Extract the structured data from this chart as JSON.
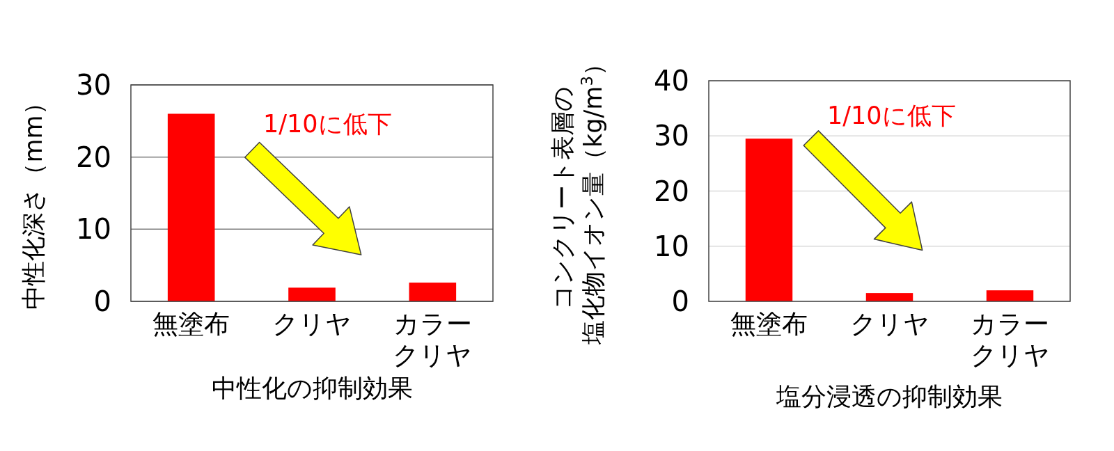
{
  "chart_data": [
    {
      "type": "bar",
      "xlabel": "中性化の抑制効果",
      "ylabel": "中性化深さ（mm）",
      "categories": [
        "無塗布",
        "クリヤ",
        "カラークリヤ"
      ],
      "values": [
        26,
        1.9,
        2.6
      ],
      "color": "#ff0000",
      "ylim": [
        0,
        30
      ],
      "yticks": [
        0,
        10,
        20,
        30
      ],
      "grid": "y",
      "annotations": [
        "1/10に低下"
      ]
    },
    {
      "type": "bar",
      "xlabel": "塩分浸透の抑制効果",
      "ylabel": "コンクリート表層の塩化物イオン量（kg/m$^{3}$）",
      "categories": [
        "無塗布",
        "クリヤ",
        "カラークリヤ"
      ],
      "values": [
        29.5,
        1.5,
        2.0
      ],
      "color": "#ff0000",
      "ylim": [
        0,
        40
      ],
      "yticks": [
        0,
        10,
        20,
        30,
        40
      ],
      "grid": "y",
      "annotations": [
        "1/10に低下"
      ]
    }
  ]
}
